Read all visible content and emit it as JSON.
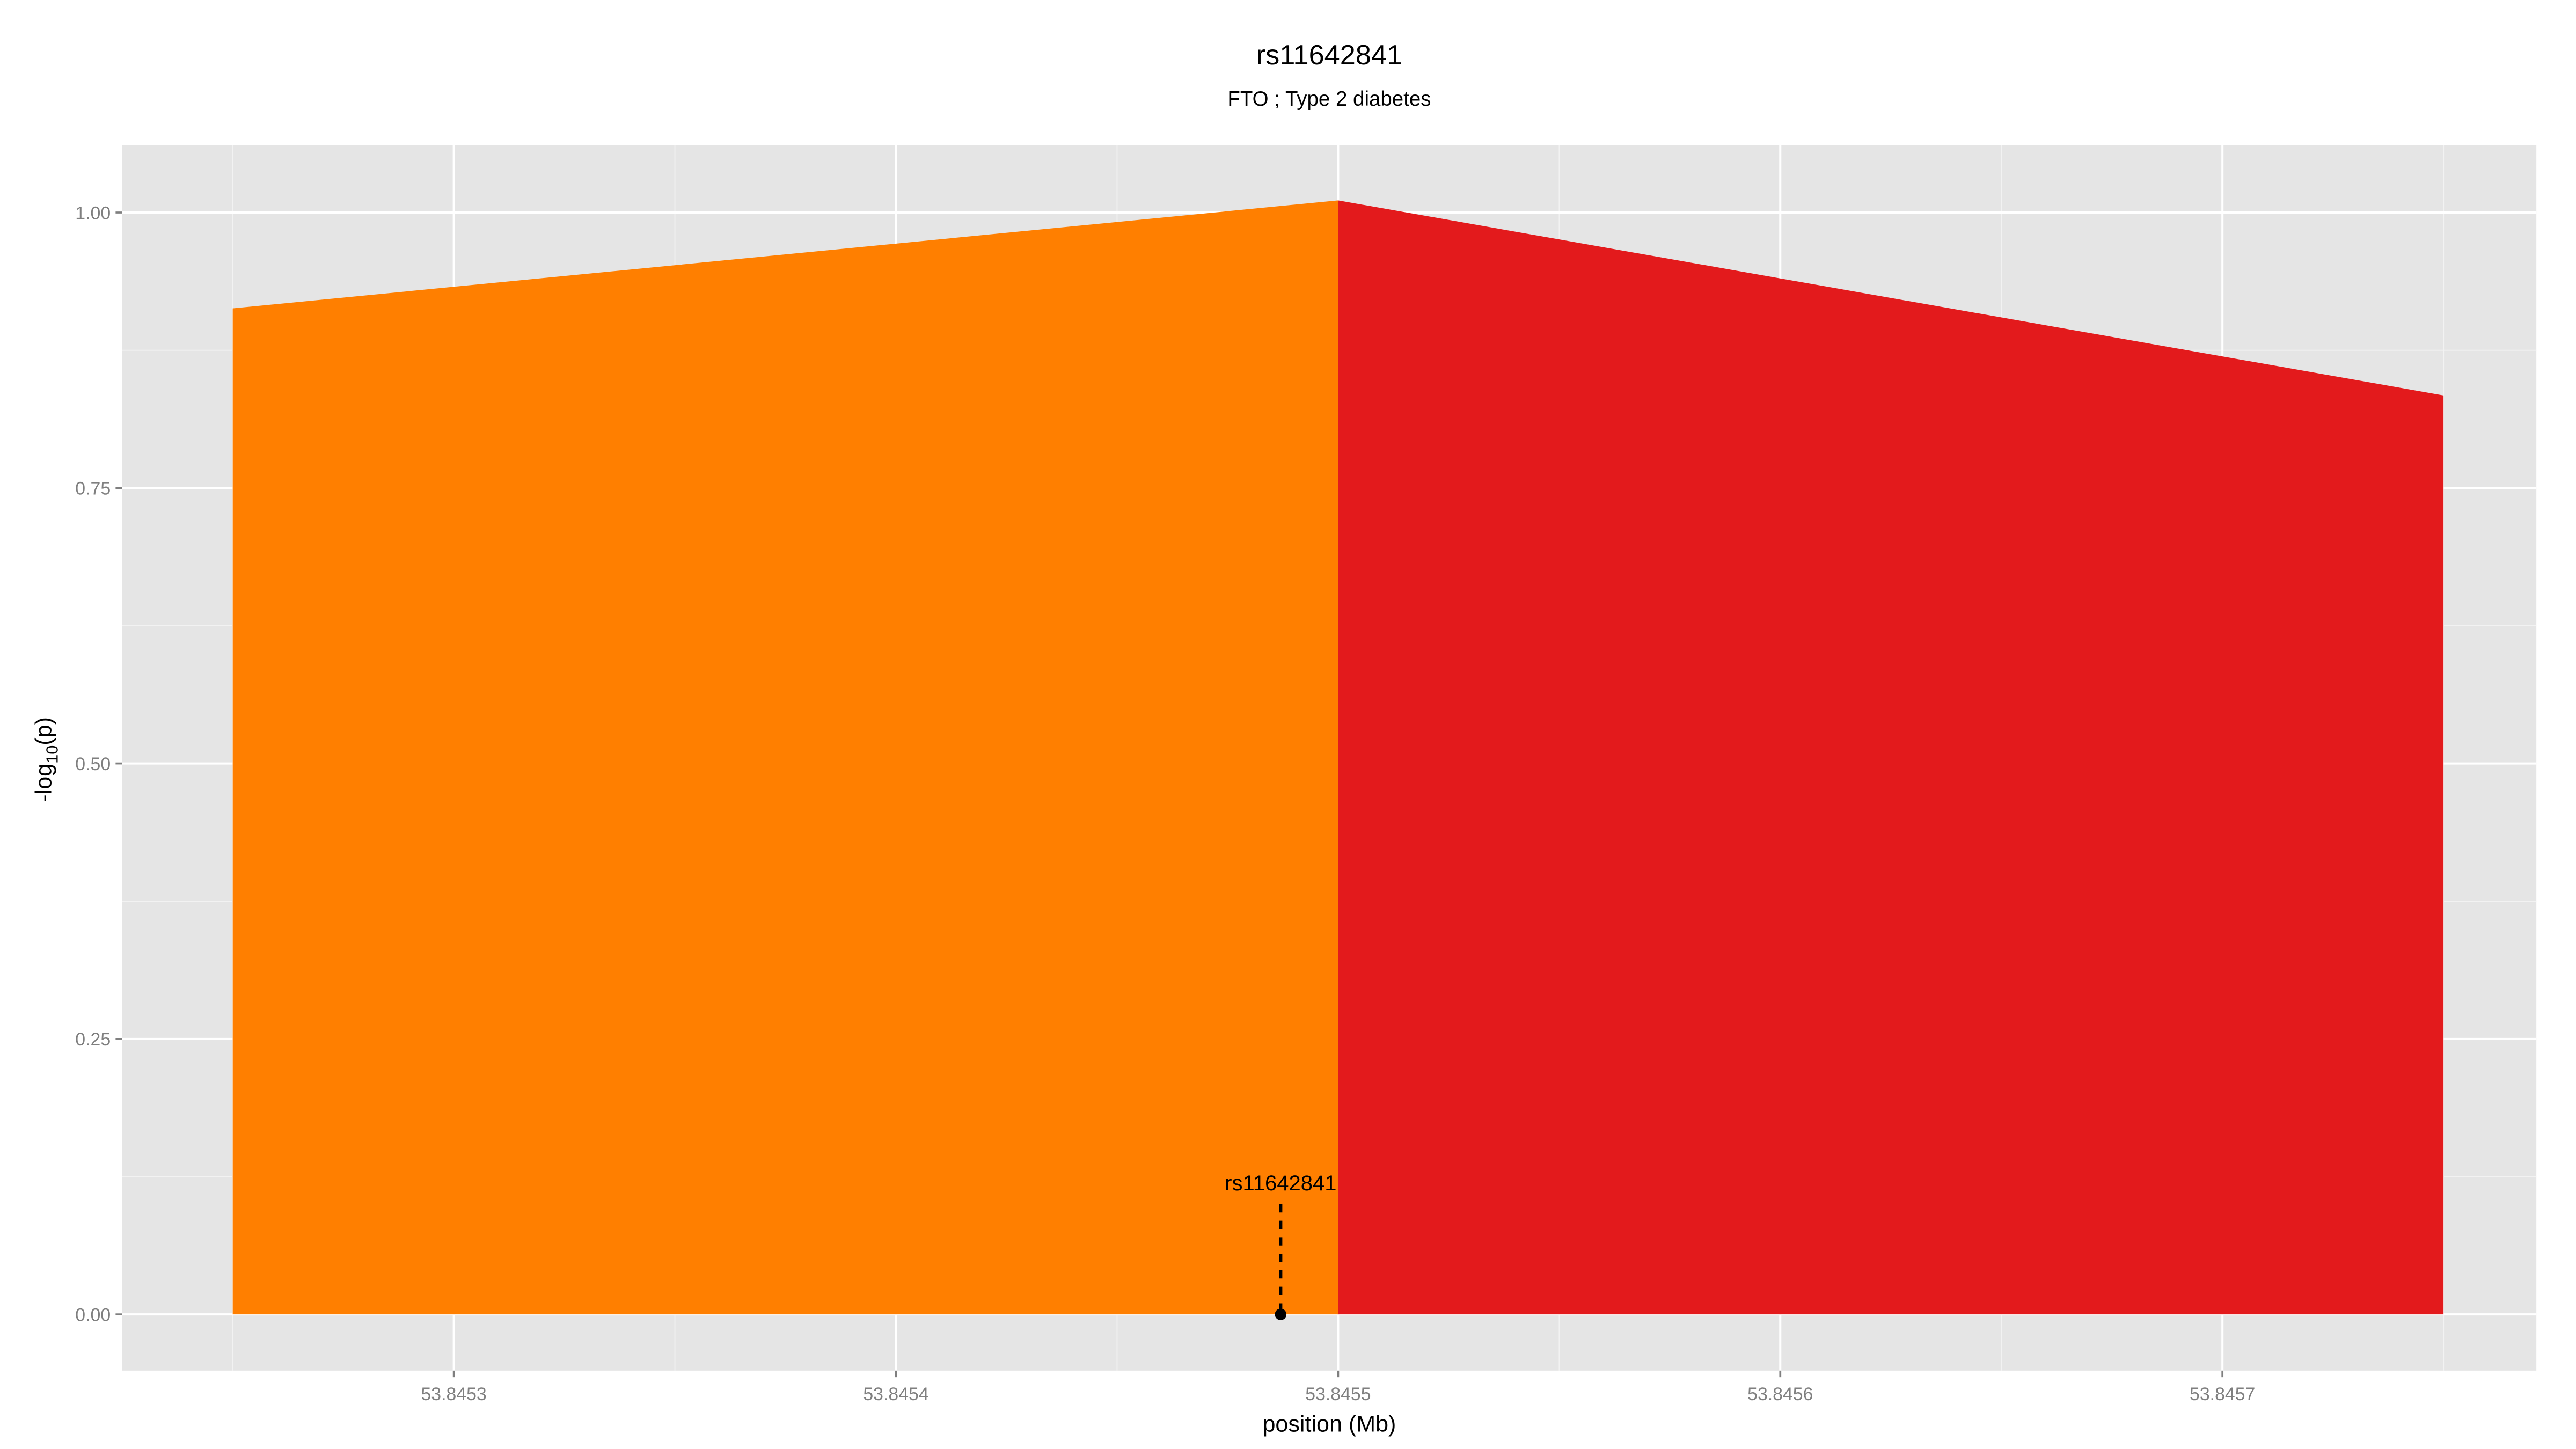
{
  "chart_data": {
    "type": "area",
    "title": "rs11642841",
    "subtitle": "FTO ; Type 2 diabetes",
    "xlabel": "position (Mb)",
    "ylabel": "-log10(p)",
    "ylabel_main": "-log",
    "ylabel_sub": "10",
    "ylabel_tail": "(p)",
    "xlim": [
      53.845225,
      53.845771
    ],
    "ylim": [
      -0.051,
      1.061
    ],
    "grid": true,
    "panel_background": "#e5e5e5",
    "x_ticks": [
      53.8453,
      53.8454,
      53.8455,
      53.8456,
      53.8457
    ],
    "x_tick_labels": [
      "53.8453",
      "53.8454",
      "53.8455",
      "53.8456",
      "53.8457"
    ],
    "y_ticks": [
      0,
      0.25,
      0.5,
      0.75,
      1.0
    ],
    "y_tick_labels": [
      "0.00",
      "0.25",
      "0.50",
      "0.75",
      "1.00"
    ],
    "series": [
      {
        "color": "#ff7f00",
        "points": [
          [
            53.84525,
            0.913
          ],
          [
            53.8455,
            1.011
          ]
        ]
      },
      {
        "color": "#e31a1c",
        "points": [
          [
            53.8455,
            1.011
          ],
          [
            53.84575,
            0.834
          ]
        ]
      }
    ],
    "annotation": {
      "label": "rs11642841",
      "x": 53.845487,
      "y": 0,
      "line_top": 0.1,
      "label_y": 0.12
    }
  }
}
